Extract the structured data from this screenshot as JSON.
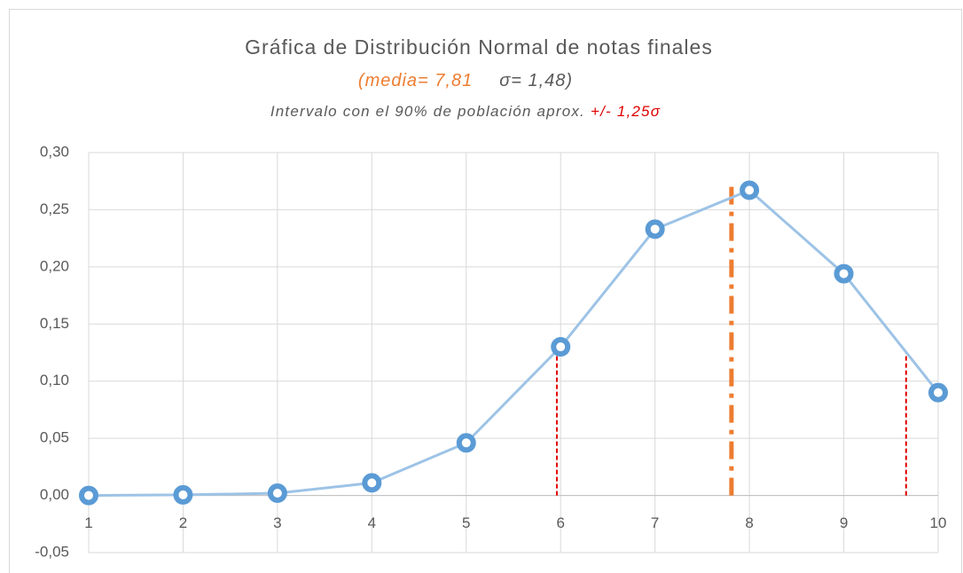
{
  "chart_data": {
    "type": "line",
    "title": "Gráfica de Distribución Normal de notas finales",
    "subtitle": [
      "(media= 7,81",
      "σ= 1,48)"
    ],
    "note": [
      "Intervalo con el 90% de población aprox.",
      "+/- 1,25σ"
    ],
    "x": [
      1,
      2,
      3,
      4,
      5,
      6,
      7,
      8,
      9,
      10
    ],
    "series": [
      {
        "color": "#5b9bd5",
        "values": [
          0.0,
          0.0005,
          0.002,
          0.011,
          0.046,
          0.13,
          0.233,
          0.267,
          0.194,
          0.09
        ]
      }
    ],
    "vlines": [
      {
        "x": 7.81,
        "top": 0.27,
        "color": "#ed7d31",
        "style": "dashdot"
      },
      {
        "x": 5.96,
        "top": 0.125,
        "color": "#e00000",
        "style": "dash"
      },
      {
        "x": 9.66,
        "top": 0.125,
        "color": "#e00000",
        "style": "dash"
      }
    ],
    "xlim": [
      1,
      10
    ],
    "xticks": [
      1,
      2,
      3,
      4,
      5,
      6,
      7,
      8,
      9,
      10
    ],
    "ylim": [
      -0.05,
      0.3
    ],
    "yticks": [
      {
        "value": -0.05,
        "label": "-0,05"
      },
      {
        "value": 0,
        "label": "0,00"
      },
      {
        "value": 0.05,
        "label": "0,05"
      },
      {
        "value": 0.1,
        "label": "0,10"
      },
      {
        "value": 0.15,
        "label": "0,15"
      },
      {
        "value": 0.2,
        "label": "0,20"
      },
      {
        "value": 0.25,
        "label": "0,25"
      },
      {
        "value": 0.3,
        "label": "0,30"
      }
    ],
    "grid": true
  }
}
